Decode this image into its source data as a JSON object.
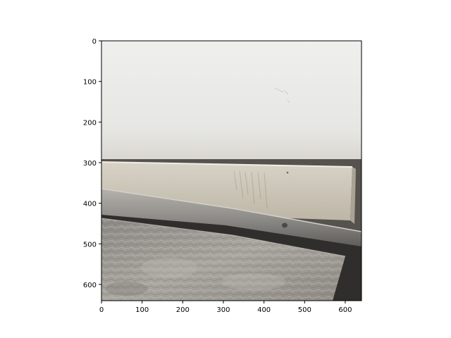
{
  "figure": {
    "kind": "image-axes",
    "scene": "wall-floor-corner-with-baseboard-and-stone-tile",
    "x_axis": {
      "range": [
        0,
        640
      ],
      "ticks": [
        0,
        100,
        200,
        300,
        400,
        500,
        600
      ]
    },
    "y_axis": {
      "range": [
        0,
        640
      ],
      "inverted": true,
      "ticks": [
        0,
        100,
        200,
        300,
        400,
        500,
        600
      ]
    },
    "colors": {
      "wall": "#e9e9e7",
      "baseboard": "#c9c3b5",
      "metal_strip": "#8a8884",
      "shadow": "#3a3937",
      "stone": "#9e9b95",
      "axes_frame": "#000000"
    }
  }
}
